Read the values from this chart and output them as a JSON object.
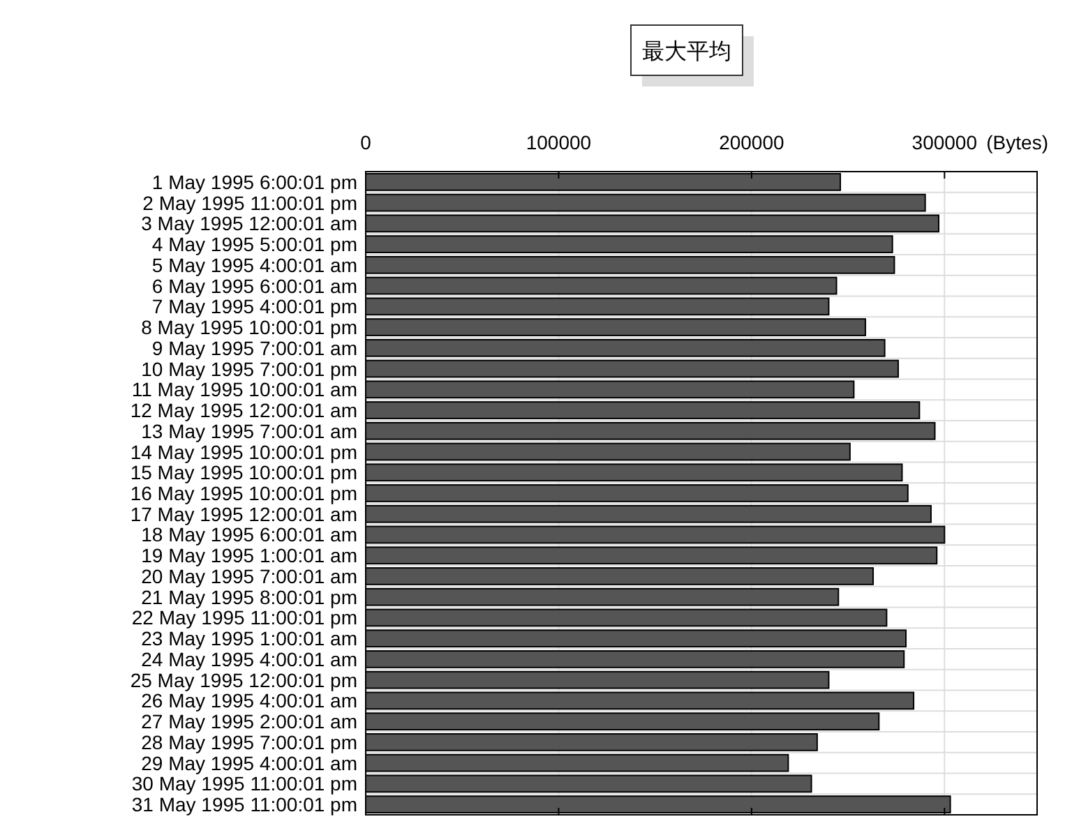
{
  "chart_data": {
    "type": "bar",
    "orientation": "horizontal",
    "title": "最大平均",
    "xlabel": "(Bytes)",
    "categories": [
      "1 May 1995 6:00:01 pm",
      "2 May 1995 11:00:01 pm",
      "3 May 1995 12:00:01 am",
      "4 May 1995 5:00:01 pm",
      "5 May 1995 4:00:01 am",
      "6 May 1995 6:00:01 am",
      "7 May 1995 4:00:01 pm",
      "8 May 1995 10:00:01 pm",
      "9 May 1995 7:00:01 am",
      "10 May 1995 7:00:01 pm",
      "11 May 1995 10:00:01 am",
      "12 May 1995 12:00:01 am",
      "13 May 1995 7:00:01 am",
      "14 May 1995 10:00:01 pm",
      "15 May 1995 10:00:01 pm",
      "16 May 1995 10:00:01 pm",
      "17 May 1995 12:00:01 am",
      "18 May 1995 6:00:01 am",
      "19 May 1995 1:00:01 am",
      "20 May 1995 7:00:01 am",
      "21 May 1995 8:00:01 pm",
      "22 May 1995 11:00:01 pm",
      "23 May 1995 1:00:01 am",
      "24 May 1995 4:00:01 am",
      "25 May 1995 12:00:01 pm",
      "26 May 1995 4:00:01 am",
      "27 May 1995 2:00:01 am",
      "28 May 1995 7:00:01 pm",
      "29 May 1995 4:00:01 am",
      "30 May 1995 11:00:01 pm",
      "31 May 1995 11:00:01 pm"
    ],
    "values": [
      246000,
      290000,
      297000,
      273000,
      274000,
      244000,
      240000,
      259000,
      269000,
      276000,
      253000,
      287000,
      295000,
      251000,
      278000,
      281000,
      293000,
      300000,
      296000,
      263000,
      245000,
      270000,
      280000,
      279000,
      240000,
      284000,
      266000,
      234000,
      219000,
      231000,
      303000
    ],
    "color": "#555555",
    "xlim": [
      0,
      348000
    ],
    "xticks": [
      0,
      100000,
      200000,
      300000
    ],
    "grid": true
  }
}
